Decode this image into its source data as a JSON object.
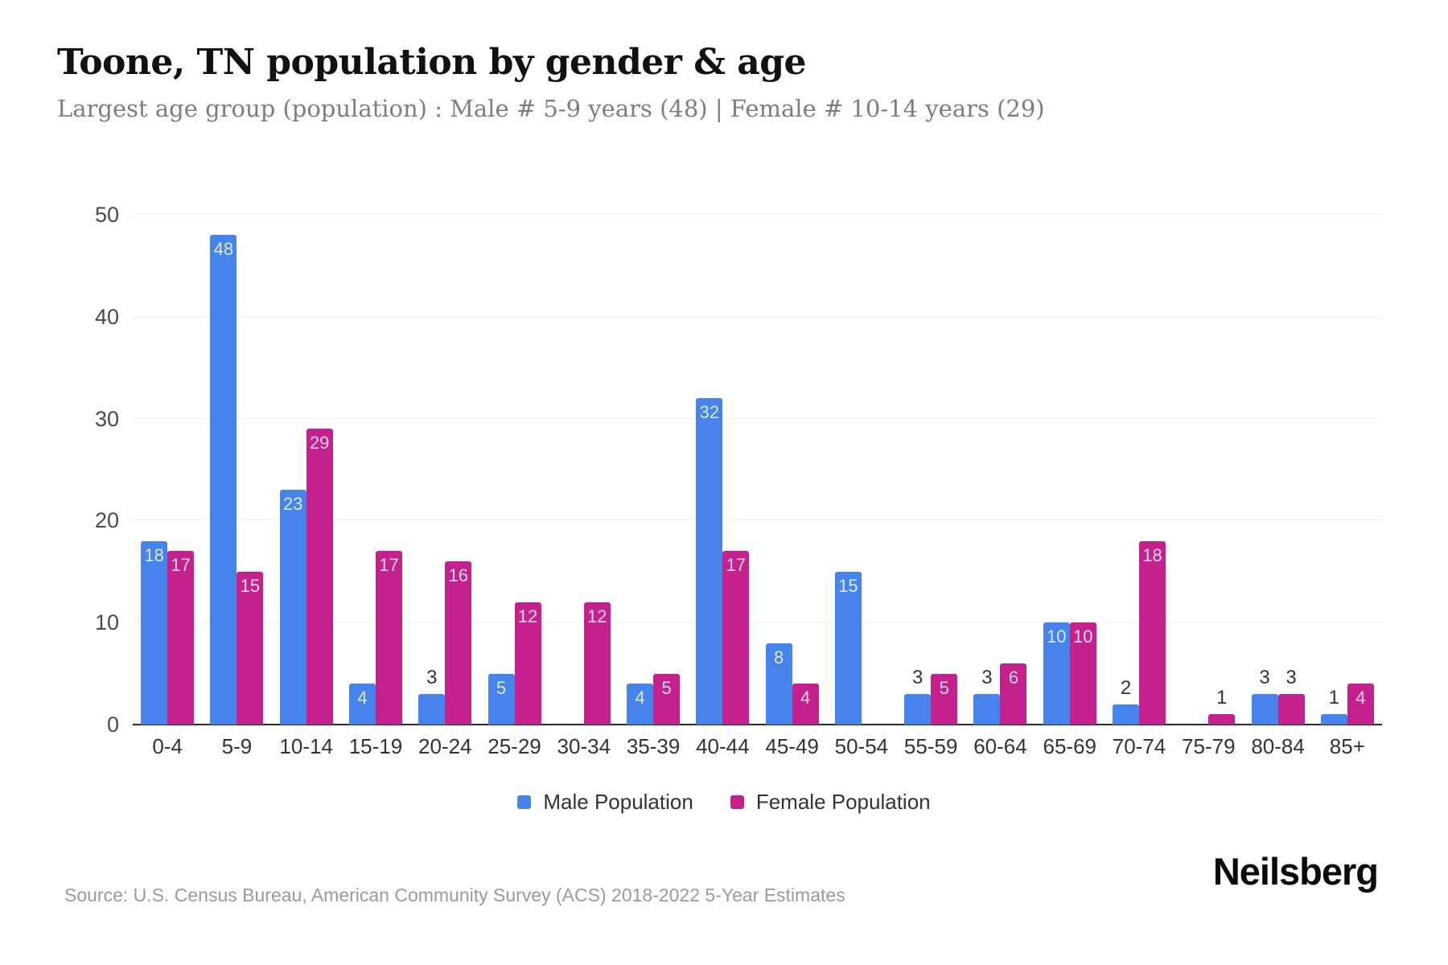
{
  "header": {
    "title": "Toone, TN population by gender & age",
    "subtitle": "Largest age group (population) : Male # 5-9 years (48) | Female # 10-14 years (29)"
  },
  "chart_data": {
    "type": "bar",
    "title": "Toone, TN population by gender & age",
    "xlabel": "",
    "ylabel": "",
    "categories": [
      "0-4",
      "5-9",
      "10-14",
      "15-19",
      "20-24",
      "25-29",
      "30-34",
      "35-39",
      "40-44",
      "45-49",
      "50-54",
      "55-59",
      "60-64",
      "65-69",
      "70-74",
      "75-79",
      "80-84",
      "85+"
    ],
    "series": [
      {
        "name": "Male Population",
        "color": "#4684EC",
        "values": [
          18,
          48,
          23,
          4,
          3,
          5,
          0,
          4,
          32,
          8,
          15,
          3,
          3,
          10,
          2,
          0,
          3,
          1
        ]
      },
      {
        "name": "Female Population",
        "color": "#C4218C",
        "values": [
          17,
          15,
          29,
          17,
          16,
          12,
          12,
          5,
          17,
          4,
          0,
          5,
          6,
          10,
          18,
          1,
          3,
          4
        ]
      }
    ],
    "ylim": [
      0,
      50
    ],
    "yticks": [
      0,
      10,
      20,
      30,
      40,
      50
    ],
    "grid": "horizontal",
    "legend_position": "bottom",
    "value_label_rule": "white label inside bar top when value >= 4; dark label above bar when value 1-3; no bar or label when 0"
  },
  "footer": {
    "source": "Source: U.S. Census Bureau, American Community Survey (ACS) 2018-2022 5-Year Estimates",
    "brand": "Neilsberg"
  }
}
